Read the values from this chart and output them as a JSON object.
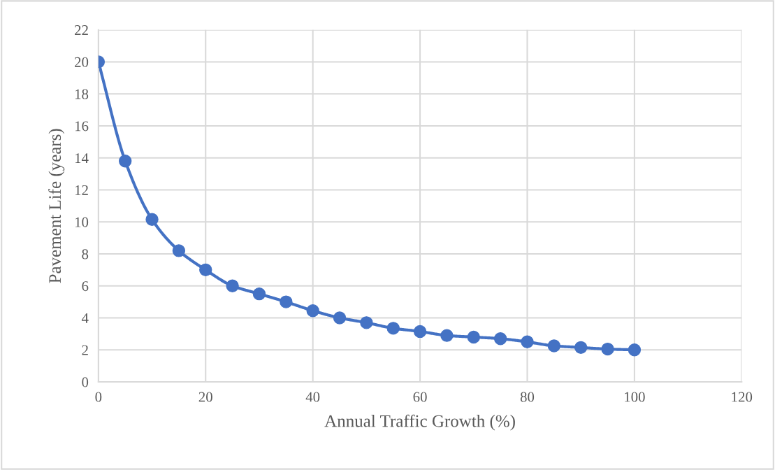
{
  "chart_data": {
    "type": "line",
    "xlabel": "Annual Traffic Growth (%)",
    "ylabel": "Pavement Life (years)",
    "x": [
      0,
      5,
      10,
      15,
      20,
      25,
      30,
      35,
      40,
      45,
      50,
      55,
      60,
      65,
      70,
      75,
      80,
      85,
      90,
      95,
      100
    ],
    "series": [
      {
        "color": "#4472c4",
        "values": [
          20,
          13.8,
          10.15,
          8.2,
          7.0,
          6.0,
          5.5,
          5.0,
          4.45,
          4.0,
          3.7,
          3.35,
          3.15,
          2.9,
          2.8,
          2.7,
          2.5,
          2.25,
          2.15,
          2.05,
          2.0
        ]
      }
    ],
    "xlim": [
      0,
      120
    ],
    "xticks": [
      0,
      20,
      40,
      60,
      80,
      100,
      120
    ],
    "ylim": [
      0,
      22
    ],
    "yticks": [
      0,
      2,
      4,
      6,
      8,
      10,
      12,
      14,
      16,
      18,
      20,
      22
    ],
    "grid": true,
    "marker": "circle",
    "line_style": "solid"
  }
}
